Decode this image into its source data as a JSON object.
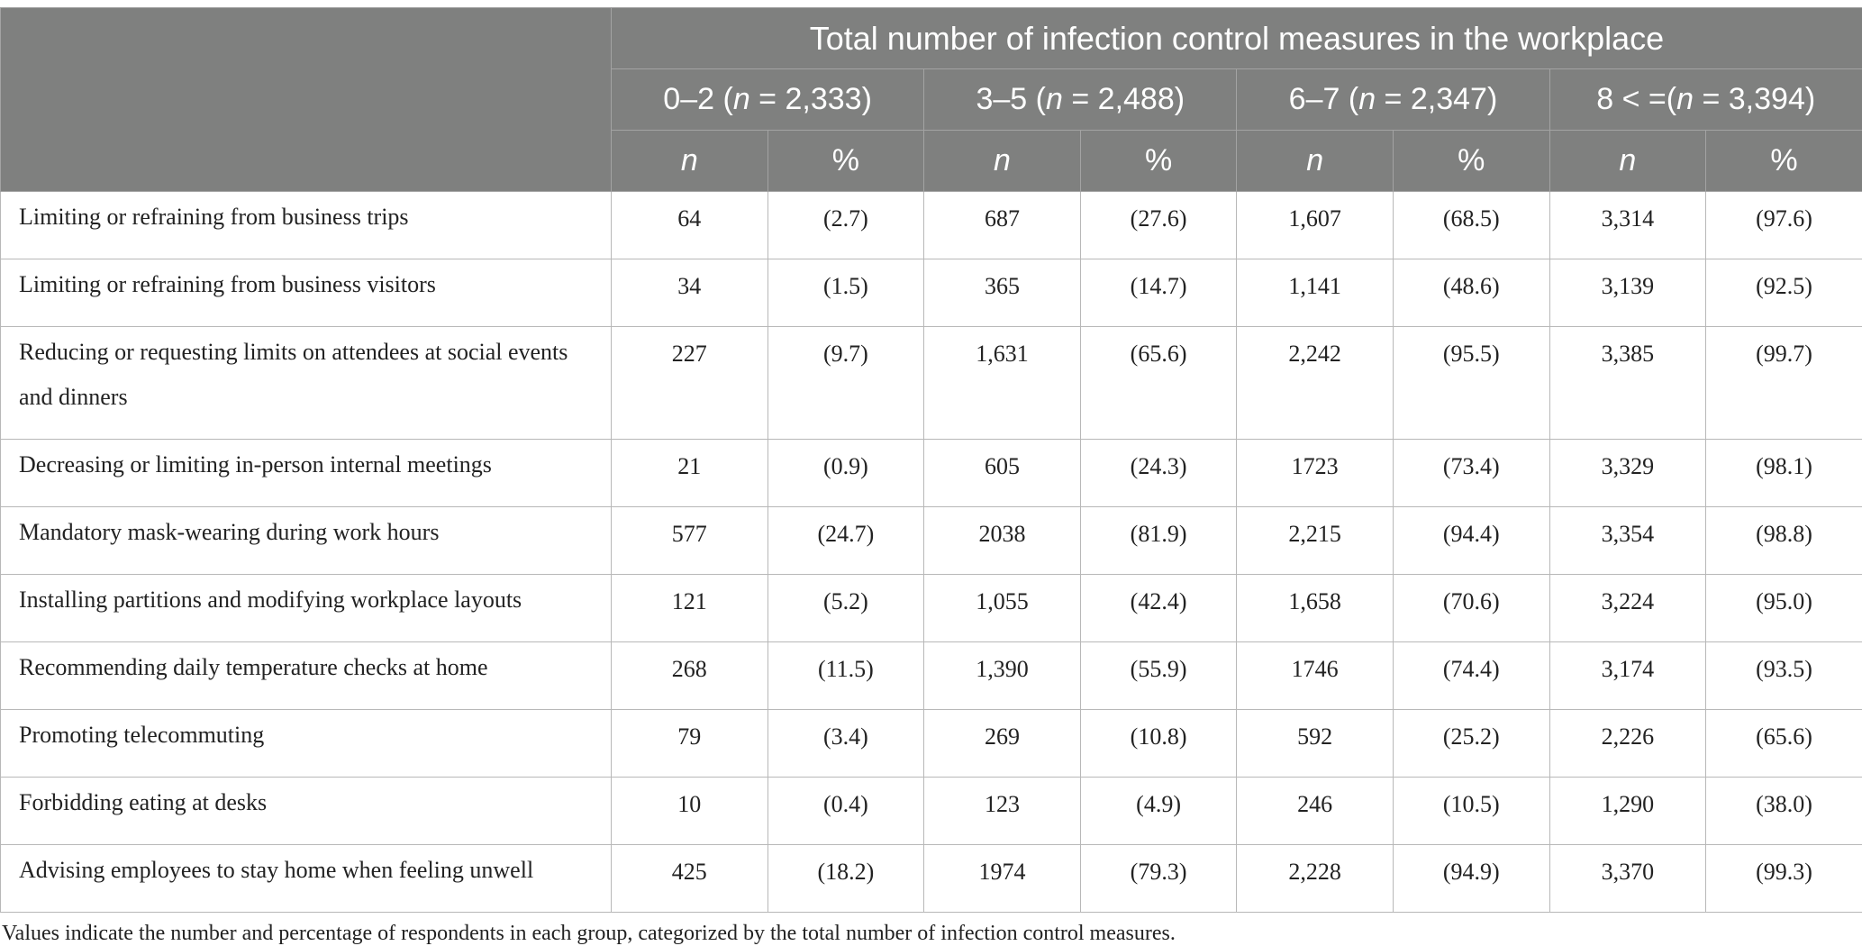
{
  "table": {
    "main_header": "Total number of infection control measures in the workplace",
    "groups": [
      {
        "range": "0–2",
        "n_italic": "n",
        "n_value": " = 2,333)",
        "open": " ("
      },
      {
        "range": "3–5",
        "n_italic": "n",
        "n_value": " = 2,488)",
        "open": " ("
      },
      {
        "range": "6–7",
        "n_italic": "n",
        "n_value": " = 2,347)",
        "open": " ("
      },
      {
        "range": "8 < =",
        "n_italic": "n",
        "n_value": " = 3,394)",
        "open": "("
      }
    ],
    "subheaders": [
      "n",
      "%",
      "n",
      "%",
      "n",
      "%",
      "n",
      "%"
    ],
    "rows": [
      {
        "label": "Limiting or refraining from business trips",
        "cells": [
          "64",
          "(2.7)",
          "687",
          "(27.6)",
          "1,607",
          "(68.5)",
          "3,314",
          "(97.6)"
        ]
      },
      {
        "label": "Limiting or refraining from business visitors",
        "cells": [
          "34",
          "(1.5)",
          "365",
          "(14.7)",
          "1,141",
          "(48.6)",
          "3,139",
          "(92.5)"
        ]
      },
      {
        "label": "Reducing or requesting limits on attendees at social events and dinners",
        "cells": [
          "227",
          "(9.7)",
          "1,631",
          "(65.6)",
          "2,242",
          "(95.5)",
          "3,385",
          "(99.7)"
        ]
      },
      {
        "label": "Decreasing or limiting in-person internal meetings",
        "cells": [
          "21",
          "(0.9)",
          "605",
          "(24.3)",
          "1723",
          "(73.4)",
          "3,329",
          "(98.1)"
        ]
      },
      {
        "label": "Mandatory mask-wearing during work hours",
        "cells": [
          "577",
          "(24.7)",
          "2038",
          "(81.9)",
          "2,215",
          "(94.4)",
          "3,354",
          "(98.8)"
        ]
      },
      {
        "label": "Installing partitions and modifying workplace layouts",
        "cells": [
          "121",
          "(5.2)",
          "1,055",
          "(42.4)",
          "1,658",
          "(70.6)",
          "3,224",
          "(95.0)"
        ]
      },
      {
        "label": "Recommending daily temperature checks at home",
        "cells": [
          "268",
          "(11.5)",
          "1,390",
          "(55.9)",
          "1746",
          "(74.4)",
          "3,174",
          "(93.5)"
        ]
      },
      {
        "label": "Promoting telecommuting",
        "cells": [
          "79",
          "(3.4)",
          "269",
          "(10.8)",
          "592",
          "(25.2)",
          "2,226",
          "(65.6)"
        ]
      },
      {
        "label": "Forbidding eating at desks",
        "cells": [
          "10",
          "(0.4)",
          "123",
          "(4.9)",
          "246",
          "(10.5)",
          "1,290",
          "(38.0)"
        ]
      },
      {
        "label": "Advising employees to stay home when feeling unwell",
        "cells": [
          "425",
          "(18.2)",
          "1974",
          "(79.3)",
          "2,228",
          "(94.9)",
          "3,370",
          "(99.3)"
        ]
      }
    ],
    "footnote": "Values indicate the number and percentage of respondents in each group, categorized by the total number of infection control measures."
  }
}
